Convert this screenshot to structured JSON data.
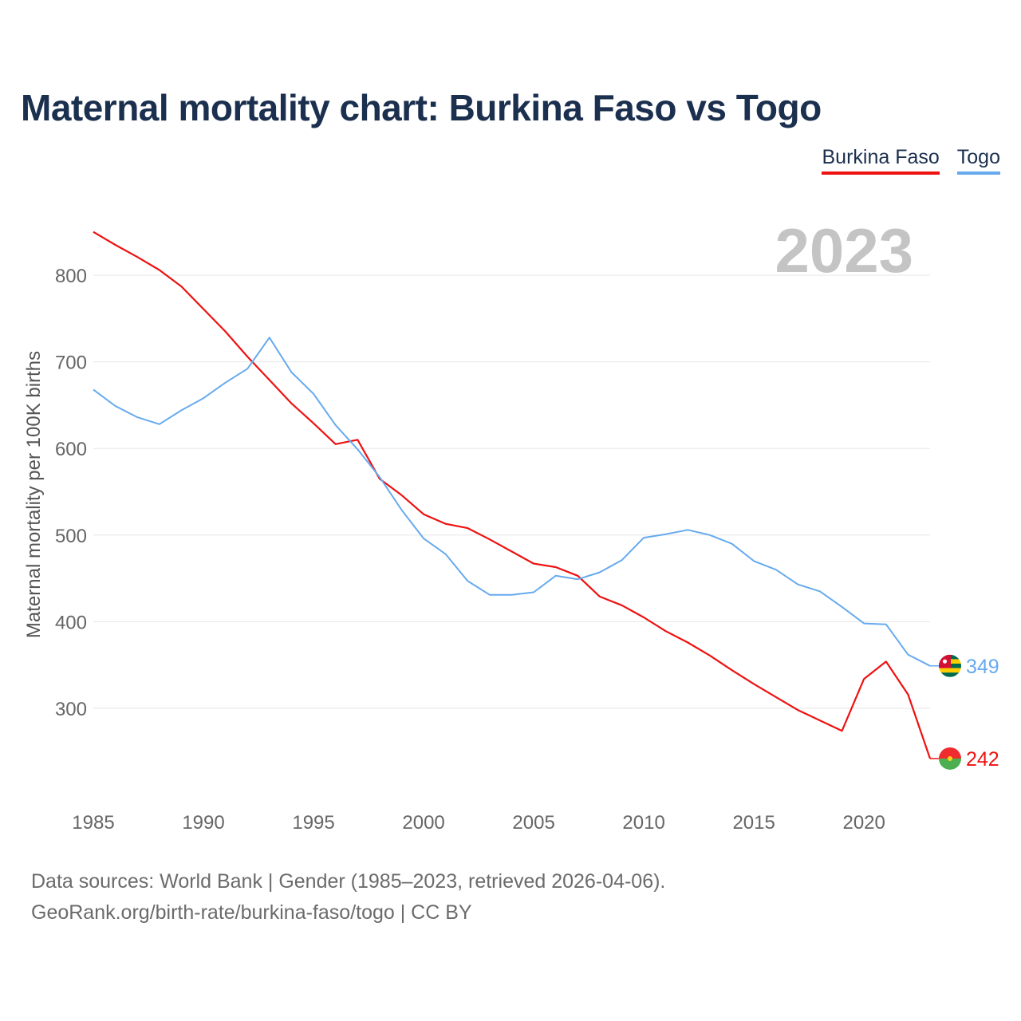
{
  "title": "Maternal mortality chart: Burkina Faso vs Togo",
  "legend": [
    {
      "name": "Burkina Faso",
      "color": "#ee1111"
    },
    {
      "name": "Togo",
      "color": "#66aaee"
    }
  ],
  "year_watermark": "2023",
  "footer": {
    "line1": "Data sources: World Bank | Gender (1985–2023, retrieved 2026-04-06).",
    "line2": "GeoRank.org/birth-rate/burkina-faso/togo | CC BY"
  },
  "chart_data": {
    "type": "line",
    "title": "Maternal mortality chart: Burkina Faso vs Togo",
    "xlabel": "",
    "ylabel": "Maternal mortality per 100K births",
    "x": [
      1985,
      1986,
      1987,
      1988,
      1989,
      1990,
      1991,
      1992,
      1993,
      1994,
      1995,
      1996,
      1997,
      1998,
      1999,
      2000,
      2001,
      2002,
      2003,
      2004,
      2005,
      2006,
      2007,
      2008,
      2009,
      2010,
      2011,
      2012,
      2013,
      2014,
      2015,
      2016,
      2017,
      2018,
      2019,
      2020,
      2021,
      2022,
      2023
    ],
    "xlim": [
      1985,
      2023
    ],
    "ylim": [
      200,
      850
    ],
    "xticks": [
      1985,
      1990,
      1995,
      2000,
      2005,
      2010,
      2015,
      2020
    ],
    "yticks": [
      300,
      400,
      500,
      600,
      700,
      800
    ],
    "grid": true,
    "legend_position": "top-right",
    "series": [
      {
        "name": "Burkina Faso",
        "color": "#ee1111",
        "end_label": "242",
        "values": [
          850,
          835,
          821,
          806,
          787,
          761,
          735,
          706,
          679,
          652,
          629,
          605,
          610,
          565,
          546,
          524,
          513,
          508,
          495,
          481,
          467,
          463,
          453,
          429,
          419,
          405,
          389,
          376,
          361,
          344,
          328,
          313,
          298,
          286,
          274,
          334,
          354,
          316,
          242
        ]
      },
      {
        "name": "Togo",
        "color": "#66aaee",
        "end_label": "349",
        "values": [
          668,
          649,
          636,
          628,
          644,
          658,
          676,
          692,
          728,
          688,
          663,
          627,
          599,
          567,
          529,
          496,
          478,
          447,
          431,
          431,
          434,
          453,
          449,
          457,
          471,
          497,
          501,
          506,
          500,
          490,
          470,
          460,
          443,
          435,
          417,
          398,
          397,
          362,
          349
        ]
      }
    ]
  }
}
